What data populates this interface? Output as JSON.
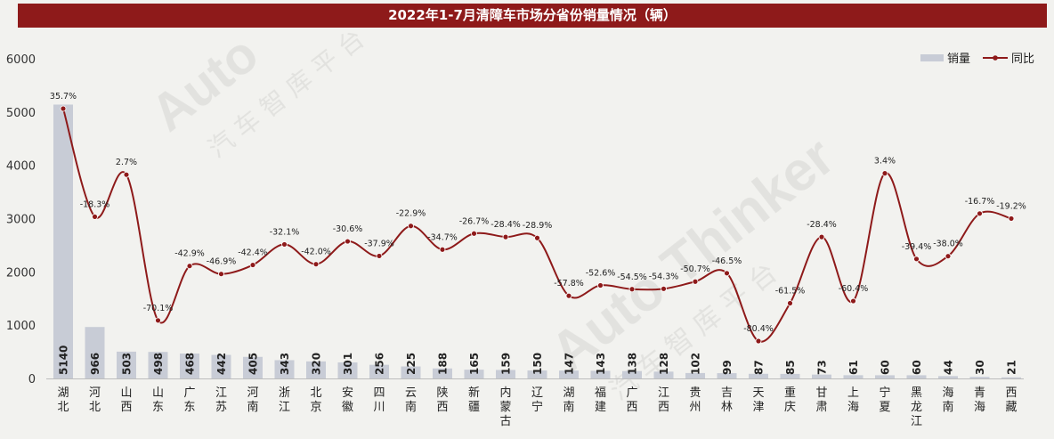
{
  "chart_data": {
    "type": "bar",
    "title": "2022年1-7月清障车市场分省份销量情况（辆）",
    "categories": [
      "湖北",
      "河北",
      "山西",
      "山东",
      "广东",
      "江苏",
      "河南",
      "浙江",
      "北京",
      "安徽",
      "四川",
      "云南",
      "陕西",
      "新疆",
      "内蒙古",
      "辽宁",
      "湖南",
      "福建",
      "广西",
      "江西",
      "贵州",
      "吉林",
      "天津",
      "重庆",
      "甘肃",
      "上海",
      "宁夏",
      "黑龙江",
      "海南",
      "青海",
      "西藏"
    ],
    "series": [
      {
        "name": "销量",
        "type": "bar",
        "color": "#c8ccd6",
        "values": [
          5140,
          966,
          503,
          498,
          468,
          442,
          405,
          343,
          320,
          301,
          256,
          225,
          188,
          165,
          159,
          150,
          147,
          143,
          138,
          128,
          102,
          99,
          87,
          85,
          73,
          61,
          60,
          60,
          44,
          30,
          21
        ]
      },
      {
        "name": "同比",
        "type": "line",
        "color": "#8e1a1a",
        "values": [
          35.7,
          -18.3,
          2.7,
          -70.1,
          -42.9,
          -46.9,
          -42.4,
          -32.1,
          -42.0,
          -30.6,
          -37.9,
          -22.9,
          -34.7,
          -26.7,
          -28.4,
          -28.9,
          -57.8,
          -52.6,
          -54.5,
          -54.3,
          -50.7,
          -46.5,
          -80.4,
          -61.5,
          -28.4,
          -60.4,
          3.4,
          -39.4,
          -38.0,
          -16.7,
          -19.2
        ],
        "labels": [
          "35.7%",
          "-18.3%",
          "2.7%",
          "-70.1%",
          "-42.9%",
          "-46.9%",
          "-42.4%",
          "-32.1%",
          "-42.0%",
          "-30.6%",
          "-37.9%",
          "-22.9%",
          "-34.7%",
          "-26.7%",
          "-28.4%",
          "-28.9%",
          "-57.8%",
          "-52.6%",
          "-54.5%",
          "-54.3%",
          "-50.7%",
          "-46.5%",
          "-80.4%",
          "-61.5%",
          "-28.4%",
          "-60.4%",
          "3.4%",
          "-39.4%",
          "-38.0%",
          "-16.7%",
          "-19.2%"
        ]
      }
    ],
    "y_ticks": [
      "0",
      "1000",
      "2000",
      "3000",
      "4000",
      "5000",
      "6000"
    ],
    "ylim": [
      0,
      6000
    ],
    "legend": {
      "position": "top-right",
      "items": [
        "销量",
        "同比"
      ]
    },
    "grid": false
  },
  "watermark": {
    "text": "Auto Thinker",
    "subtext": "汽 车 智 库 平 台"
  }
}
